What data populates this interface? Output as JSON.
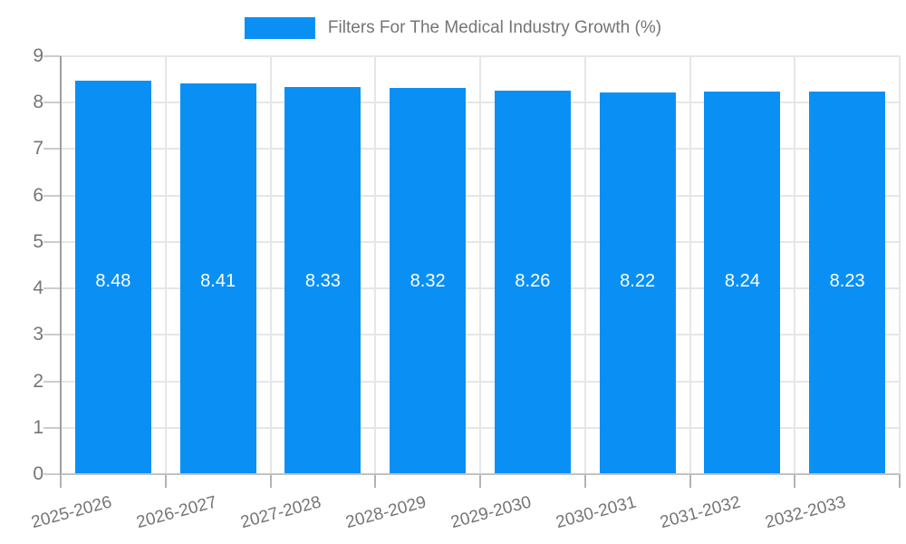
{
  "chart_data": {
    "type": "bar",
    "title": "Filters For The Medical Industry Growth (%)",
    "categories": [
      "2025-2026",
      "2026-2027",
      "2027-2028",
      "2028-2029",
      "2029-2030",
      "2030-2031",
      "2031-2032",
      "2032-2033"
    ],
    "values": [
      8.48,
      8.41,
      8.33,
      8.32,
      8.26,
      8.22,
      8.24,
      8.23
    ],
    "value_labels": [
      "8.48",
      "8.41",
      "8.33",
      "8.32",
      "8.26",
      "8.22",
      "8.24",
      "8.23"
    ],
    "xlabel": "",
    "ylabel": "",
    "ylim": [
      0,
      9
    ],
    "y_ticks": [
      "0",
      "1",
      "2",
      "3",
      "4",
      "5",
      "6",
      "7",
      "8",
      "9"
    ],
    "grid": true,
    "legend_position": "top-center",
    "legend_entries": [
      "Filters For The Medical Industry Growth (%)"
    ],
    "bar_label_position": "inside-middle"
  },
  "colors": {
    "bar": "#0a90f5",
    "bar_value_text": "#ffffff",
    "gridline": "#e6e6e6",
    "y_axis_line": "#9e9e9e",
    "x_axis_line": "#c2c2c2",
    "tick": "#b3b3b3",
    "axis_text": "#757575",
    "legend_text": "#757575",
    "background": "#ffffff"
  }
}
